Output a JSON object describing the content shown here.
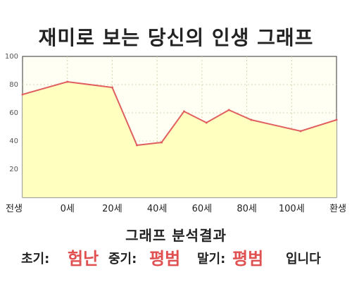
{
  "title": "재미로 보는 당신의 인생 그래프",
  "chart_data": {
    "type": "area",
    "x_labels": [
      "전생",
      "0세",
      "20세",
      "40세",
      "60세",
      "80세",
      "100세",
      "환생"
    ],
    "ylim": [
      0,
      100
    ],
    "y_ticks": [
      20,
      40,
      60,
      80,
      100
    ],
    "points": [
      {
        "pos": 0,
        "y": 73
      },
      {
        "pos": 1,
        "y": 82
      },
      {
        "pos": 2,
        "y": 78
      },
      {
        "pos": 2.55,
        "y": 37
      },
      {
        "pos": 3.1,
        "y": 39
      },
      {
        "pos": 3.6,
        "y": 61
      },
      {
        "pos": 4.1,
        "y": 53
      },
      {
        "pos": 4.6,
        "y": 62
      },
      {
        "pos": 5.1,
        "y": 55
      },
      {
        "pos": 6.2,
        "y": 47
      },
      {
        "pos": 7,
        "y": 55
      }
    ],
    "line_color": "#e06060",
    "fill_color": "#ffffc0",
    "grid": true
  },
  "result": {
    "heading": "그래프 분석결과",
    "early_label": "초기:",
    "early_value": "험난",
    "middle_label": "중기:",
    "middle_value": "평범",
    "late_label": "말기:",
    "late_value": "평범",
    "ending": "입니다"
  }
}
